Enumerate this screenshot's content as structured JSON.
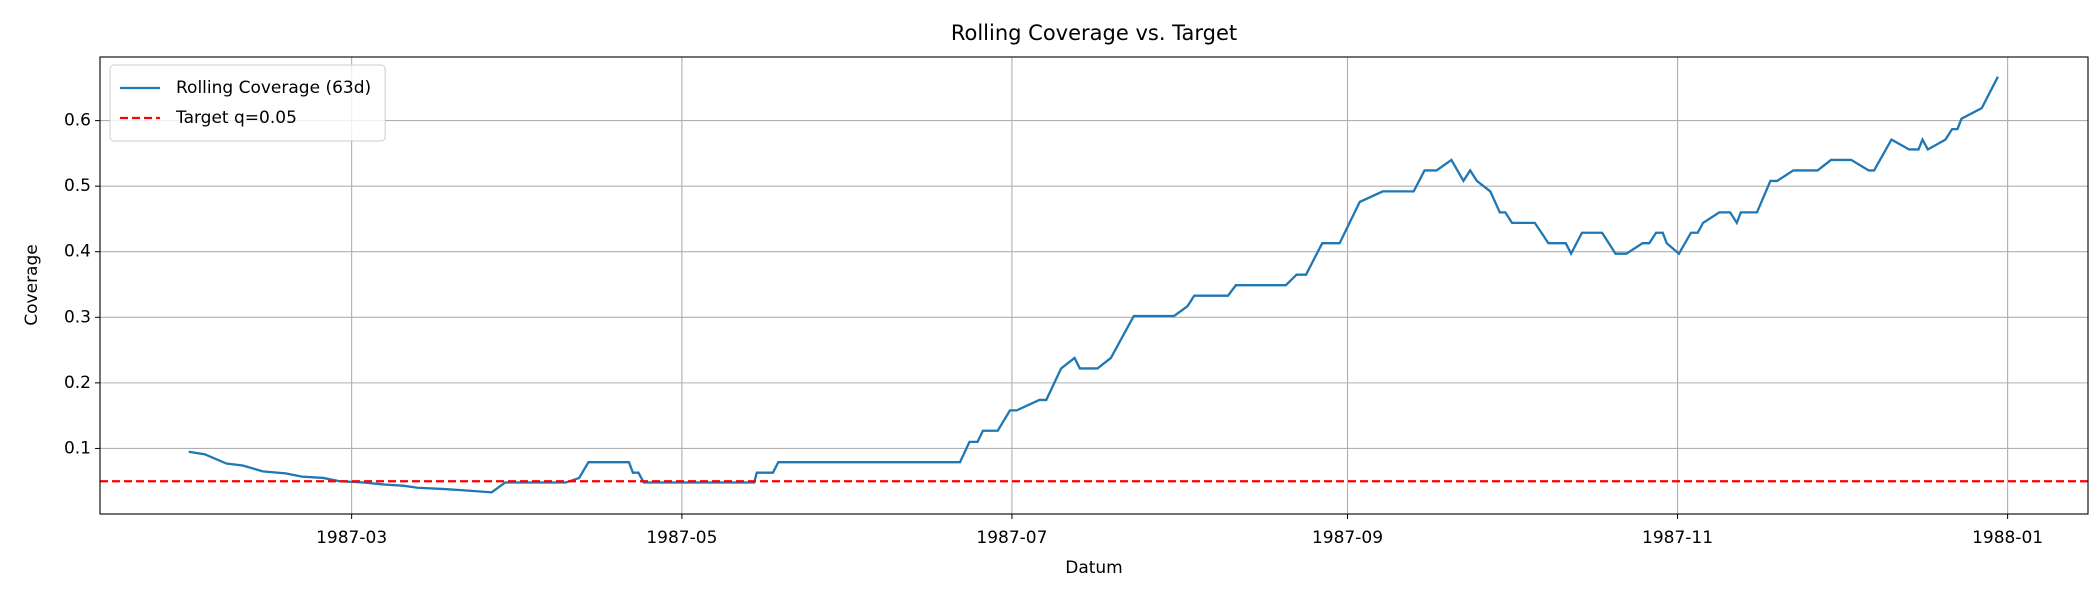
{
  "chart_data": {
    "type": "line",
    "title": "Rolling Coverage vs. Target",
    "xlabel": "Datum",
    "ylabel": "Coverage",
    "x": [
      1987.0791,
      1987.0873,
      1987.0982,
      1987.1064,
      1987.1166,
      1987.1282,
      1987.1364,
      1987.1473,
      1987.1555,
      1987.1677,
      1987.178,
      1987.1882,
      1987.195,
      1987.2086,
      1987.2188,
      1987.2325,
      1987.2393,
      1987.2529,
      1987.27,
      1987.2768,
      1987.2815,
      1987.302,
      1987.304,
      1987.3068,
      1987.3095,
      1987.3654,
      1987.3667,
      1987.3749,
      1987.3776,
      1987.4696,
      1987.4744,
      1987.4785,
      1987.4812,
      1987.4887,
      1987.4949,
      1987.4983,
      1987.5098,
      1987.5133,
      1987.5208,
      1987.5276,
      1987.5303,
      1987.5392,
      1987.546,
      1987.5576,
      1987.578,
      1987.5848,
      1987.5882,
      1987.6053,
      1987.6093,
      1987.6346,
      1987.64,
      1987.6448,
      1987.653,
      1987.6618,
      1987.672,
      1987.6836,
      1987.6993,
      1987.7048,
      1987.7109,
      1987.7184,
      1987.7245,
      1987.7279,
      1987.7313,
      1987.7381,
      1987.7429,
      1987.7457,
      1987.7491,
      1987.7606,
      1987.764,
      1987.7675,
      1987.7763,
      1987.779,
      1987.7845,
      1987.7947,
      1987.8015,
      1987.807,
      1987.8152,
      1987.8186,
      1987.822,
      1987.8254,
      1987.8274,
      1987.8336,
      1987.8397,
      1987.8431,
      1987.8458,
      1987.854,
      1987.8595,
      1987.8629,
      1987.8649,
      1987.8731,
      1987.8799,
      1987.8833,
      1987.8915,
      1987.9038,
      1987.9106,
      1987.9208,
      1987.9297,
      1987.9324,
      1987.9412,
      1987.9501,
      1987.9549,
      1987.9569,
      1987.9596,
      1987.9685,
      1987.9719,
      1987.9746,
      1987.9767,
      1987.9869,
      1987.9951
    ],
    "series": [
      {
        "name": "Rolling Coverage (63d)",
        "color": "#1f77b4",
        "values": [
          0.095,
          0.091,
          0.077,
          0.074,
          0.065,
          0.062,
          0.057,
          0.055,
          0.05,
          0.048,
          0.045,
          0.043,
          0.04,
          0.038,
          0.036,
          0.033,
          0.048,
          0.048,
          0.048,
          0.055,
          0.079,
          0.079,
          0.063,
          0.063,
          0.048,
          0.048,
          0.063,
          0.063,
          0.079,
          0.079,
          0.11,
          0.11,
          0.127,
          0.127,
          0.158,
          0.158,
          0.174,
          0.174,
          0.222,
          0.238,
          0.222,
          0.222,
          0.238,
          0.302,
          0.302,
          0.317,
          0.333,
          0.333,
          0.349,
          0.349,
          0.365,
          0.365,
          0.413,
          0.413,
          0.476,
          0.492,
          0.492,
          0.524,
          0.524,
          0.54,
          0.508,
          0.524,
          0.508,
          0.492,
          0.46,
          0.46,
          0.444,
          0.444,
          0.429,
          0.413,
          0.413,
          0.397,
          0.429,
          0.429,
          0.397,
          0.397,
          0.413,
          0.413,
          0.429,
          0.429,
          0.413,
          0.397,
          0.429,
          0.429,
          0.444,
          0.46,
          0.46,
          0.444,
          0.46,
          0.46,
          0.508,
          0.508,
          0.524,
          0.524,
          0.54,
          0.54,
          0.524,
          0.524,
          0.571,
          0.556,
          0.556,
          0.571,
          0.556,
          0.571,
          0.587,
          0.587,
          0.603,
          0.619,
          0.667
        ]
      }
    ],
    "hlines": [
      {
        "name": "Target q=0.05",
        "y": 0.05,
        "color": "red",
        "dashed": true
      }
    ],
    "xlim": [
      1987.0342,
      1988.0407
    ],
    "xticks": [
      {
        "value": 1987.1616,
        "label": "1987-03"
      },
      {
        "value": 1987.3288,
        "label": "1987-05"
      },
      {
        "value": 1987.4959,
        "label": "1987-07"
      },
      {
        "value": 1987.6658,
        "label": "1987-09"
      },
      {
        "value": 1987.8329,
        "label": "1987-11"
      },
      {
        "value": 1988,
        "label": "1988-01"
      }
    ],
    "ylim": [
      0,
      0.697
    ],
    "yticks": [
      0.1,
      0.2,
      0.3,
      0.4,
      0.5,
      0.6
    ],
    "grid": true,
    "legend": "upper left"
  }
}
